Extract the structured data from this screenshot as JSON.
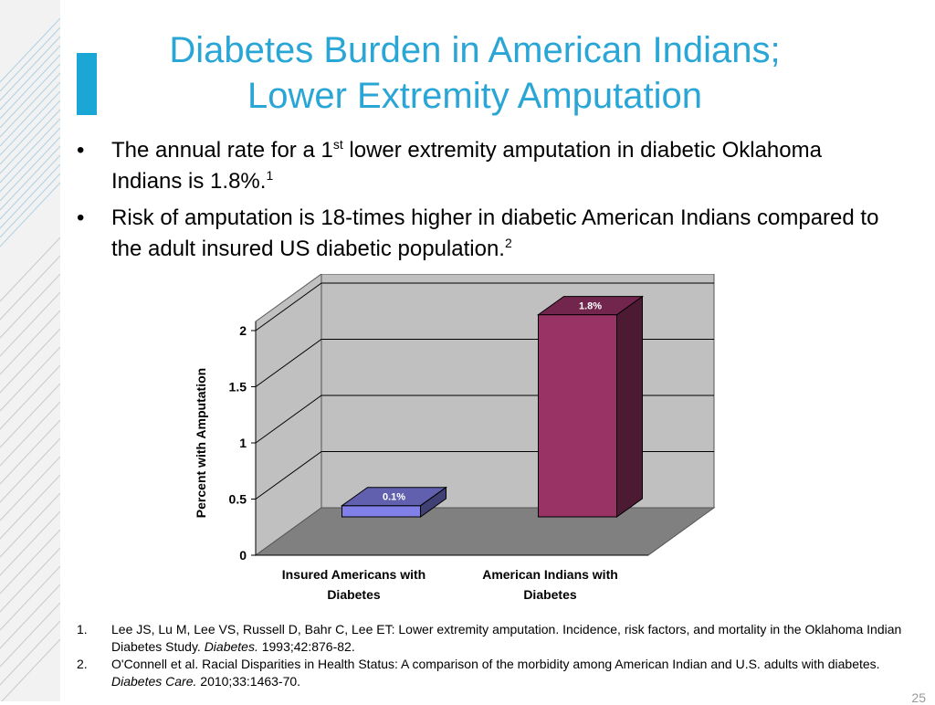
{
  "slide": {
    "title_line1": "Diabetes Burden in American Indians;",
    "title_line2": "Lower Extremity Amputation",
    "accent_color": "#1aa7d6",
    "title_color": "#2aa6d6",
    "page_number": "25"
  },
  "bullets": [
    {
      "marker": "•",
      "before": "The annual rate for a 1",
      "sup": "st",
      "after": " lower extremity amputation in diabetic Oklahoma Indians is 1.8%.",
      "ref": "1"
    },
    {
      "marker": "•",
      "before": "Risk of amputation is 18-times higher in diabetic American Indians compared to the adult insured US diabetic population.",
      "sup": "",
      "after": "",
      "ref": "2"
    }
  ],
  "chart_data": {
    "type": "bar",
    "style": "3d",
    "categories": [
      "Insured Americans with Diabetes",
      "American Indians with Diabetes"
    ],
    "category_lines": [
      [
        "Insured Americans with",
        "Diabetes"
      ],
      [
        "American Indians with",
        "Diabetes"
      ]
    ],
    "values": [
      0.1,
      1.8
    ],
    "data_labels": [
      "0.1%",
      "1.8%"
    ],
    "bar_colors": [
      "#8080e8",
      "#993366"
    ],
    "ylabel": "Percent with Amputation",
    "xlabel": "",
    "ylim": [
      0,
      2
    ],
    "yticks": [
      0,
      0.5,
      1,
      1.5,
      2
    ],
    "ytick_labels": [
      "0",
      "0.5",
      "1",
      "1.5",
      "2"
    ],
    "grid": true,
    "legend": "none"
  },
  "references": [
    {
      "num": "1.",
      "before": "Lee JS, Lu M, Lee VS, Russell D, Bahr C, Lee ET: Lower extremity amputation. Incidence, risk factors, and mortality in the Oklahoma Indian Diabetes Study. ",
      "journal": "Diabetes.",
      "after": " 1993;42:876-82."
    },
    {
      "num": "2.",
      "before": "O'Connell et al. Racial Disparities in Health Status: A comparison of the morbidity among American Indian and U.S. adults with diabetes. ",
      "journal": "Diabetes Care.",
      "after": " 2010;33:1463-70."
    }
  ]
}
